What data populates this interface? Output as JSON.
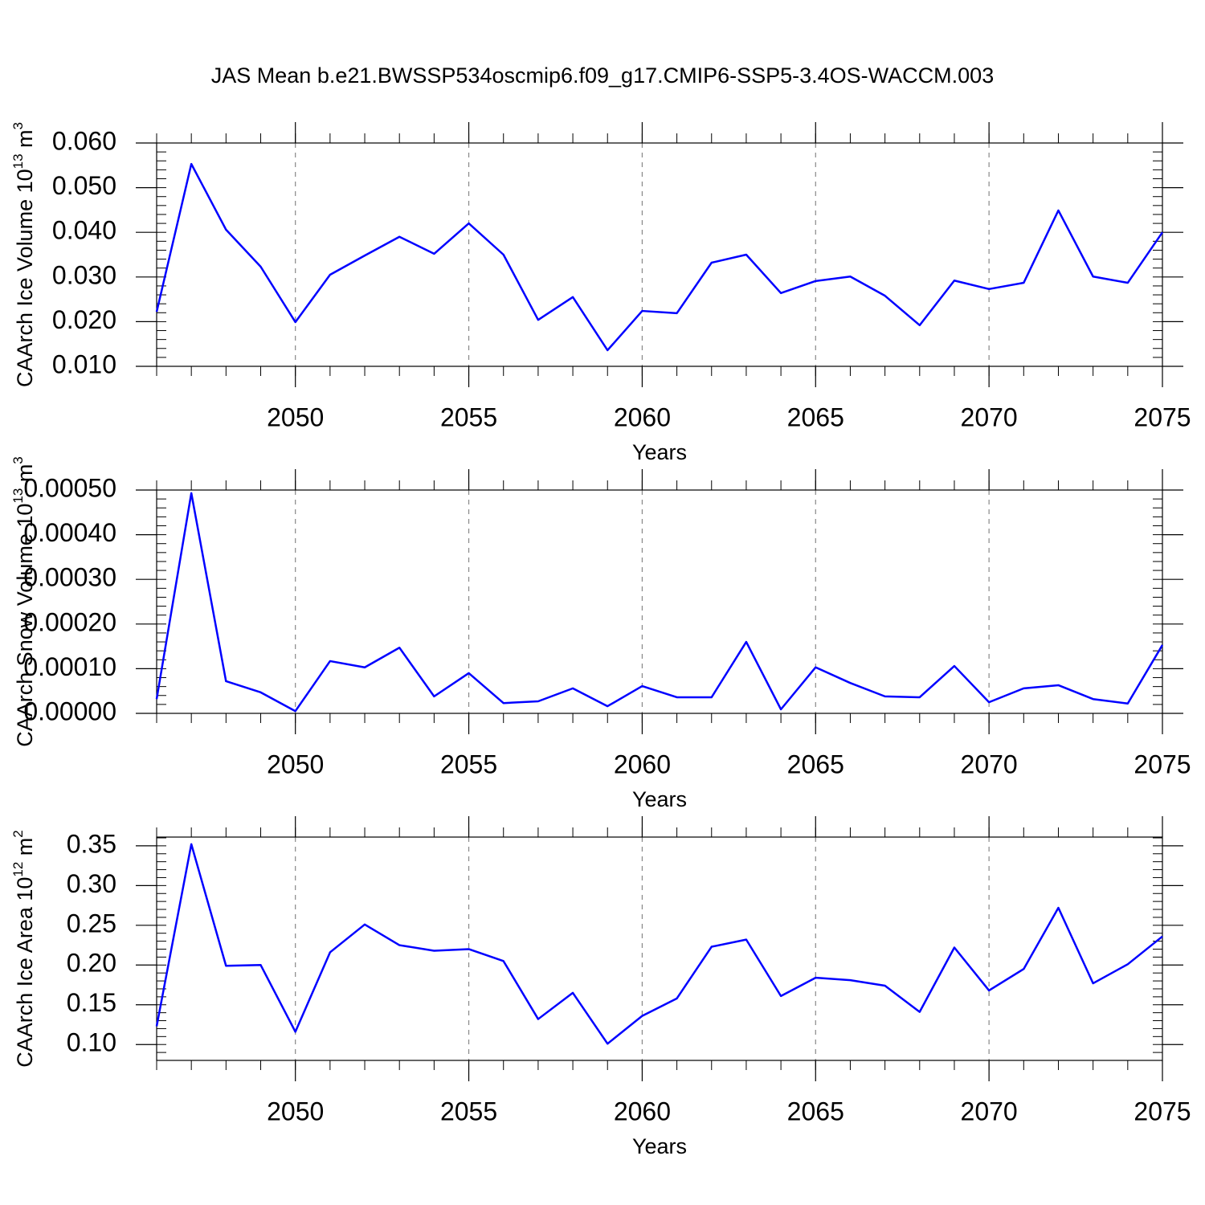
{
  "chart_data": [
    {
      "type": "line",
      "title": "JAS Mean b.e21.BWSSP534oscmip6.f09_g17.CMIP6-SSP5-3.4OS-WACCM.003",
      "ylabel": [
        "CAArch Ice Volume 10",
        "13",
        " m",
        "3"
      ],
      "xlabel": "Years",
      "x": [
        2046,
        2047,
        2048,
        2049,
        2050,
        2051,
        2052,
        2053,
        2054,
        2055,
        2056,
        2057,
        2058,
        2059,
        2060,
        2061,
        2062,
        2063,
        2064,
        2065,
        2066,
        2067,
        2068,
        2069,
        2070,
        2071,
        2072,
        2073,
        2074,
        2075
      ],
      "values": [
        0.0222,
        0.0553,
        0.0406,
        0.0323,
        0.0199,
        0.0305,
        0.0348,
        0.039,
        0.0352,
        0.042,
        0.035,
        0.0204,
        0.0255,
        0.0136,
        0.0224,
        0.0219,
        0.0332,
        0.035,
        0.0264,
        0.0291,
        0.0301,
        0.0258,
        0.0192,
        0.0292,
        0.0273,
        0.0287,
        0.0449,
        0.0301,
        0.0287,
        0.04
      ],
      "color": "#0000ff",
      "xlim": [
        2046,
        2075
      ],
      "xticks": [
        2050,
        2055,
        2060,
        2065,
        2070,
        2075
      ],
      "ylim": [
        0.01,
        0.06
      ],
      "yticks": [
        {
          "value": 0.01,
          "label": "0.010"
        },
        {
          "value": 0.02,
          "label": "0.020"
        },
        {
          "value": 0.03,
          "label": "0.030"
        },
        {
          "value": 0.04,
          "label": "0.040"
        },
        {
          "value": 0.05,
          "label": "0.050"
        },
        {
          "value": 0.06,
          "label": "0.060"
        }
      ],
      "grid": true
    },
    {
      "type": "line",
      "ylabel": [
        "CAArch Snow Volume 10",
        "13",
        " m",
        "3"
      ],
      "xlabel": "Years",
      "x": [
        2046,
        2047,
        2048,
        2049,
        2050,
        2051,
        2052,
        2053,
        2054,
        2055,
        2056,
        2057,
        2058,
        2059,
        2060,
        2061,
        2062,
        2063,
        2064,
        2065,
        2066,
        2067,
        2068,
        2069,
        2070,
        2071,
        2072,
        2073,
        2074,
        2075
      ],
      "values": [
        3.2e-05,
        0.000493,
        7.2e-05,
        4.7e-05,
        5e-06,
        0.000117,
        0.000103,
        0.000147,
        3.8e-05,
        9e-05,
        2.3e-05,
        2.7e-05,
        5.6e-05,
        1.6e-05,
        6.1e-05,
        3.6e-05,
        3.6e-05,
        0.00016,
        9e-06,
        0.000103,
        6.8e-05,
        3.8e-05,
        3.6e-05,
        0.000106,
        2.5e-05,
        5.6e-05,
        6.3e-05,
        3.2e-05,
        2.2e-05,
        0.000153
      ],
      "color": "#0000ff",
      "xlim": [
        2046,
        2075
      ],
      "xticks": [
        2050,
        2055,
        2060,
        2065,
        2070,
        2075
      ],
      "ylim": [
        0,
        0.0005
      ],
      "yticks": [
        {
          "value": 0,
          "label": "0.00000"
        },
        {
          "value": 0.0001,
          "label": "0.00010"
        },
        {
          "value": 0.0002,
          "label": "0.00020"
        },
        {
          "value": 0.0003,
          "label": "0.00030"
        },
        {
          "value": 0.0004,
          "label": "0.00040"
        },
        {
          "value": 0.0005,
          "label": "0.00050"
        }
      ],
      "grid": true
    },
    {
      "type": "line",
      "ylabel": [
        "CAArch Ice Area 10",
        "12",
        " m",
        "2"
      ],
      "xlabel": "Years",
      "x": [
        2046,
        2047,
        2048,
        2049,
        2050,
        2051,
        2052,
        2053,
        2054,
        2055,
        2056,
        2057,
        2058,
        2059,
        2060,
        2061,
        2062,
        2063,
        2064,
        2065,
        2066,
        2067,
        2068,
        2069,
        2070,
        2071,
        2072,
        2073,
        2074,
        2075
      ],
      "values": [
        0.123,
        0.352,
        0.199,
        0.2,
        0.116,
        0.216,
        0.251,
        0.225,
        0.218,
        0.22,
        0.205,
        0.132,
        0.165,
        0.101,
        0.136,
        0.158,
        0.223,
        0.232,
        0.161,
        0.184,
        0.181,
        0.174,
        0.141,
        0.222,
        0.168,
        0.195,
        0.272,
        0.177,
        0.201,
        0.236
      ],
      "color": "#0000ff",
      "xlim": [
        2046,
        2075
      ],
      "xticks": [
        2050,
        2055,
        2060,
        2065,
        2070,
        2075
      ],
      "ylim": [
        0.08,
        0.361
      ],
      "yticks": [
        {
          "value": 0.1,
          "label": "0.10"
        },
        0.15,
        {
          "value": 0.2,
          "label": "0.20"
        },
        0.25,
        {
          "value": 0.3,
          "label": "0.30"
        },
        0.35
      ],
      "grid": true
    }
  ]
}
